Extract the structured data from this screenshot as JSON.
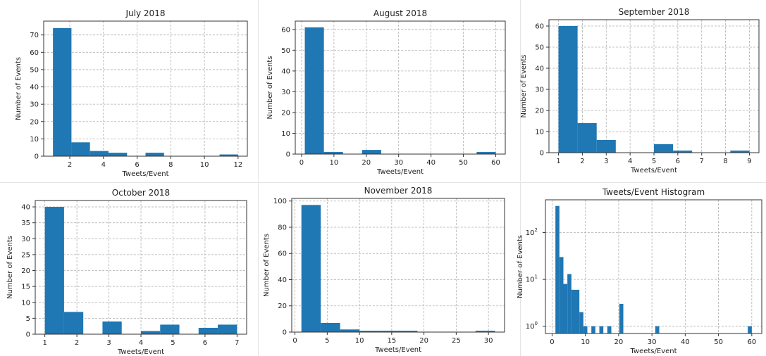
{
  "chart_data": [
    {
      "id": "july",
      "type": "bar",
      "title": "July 2018",
      "xlabel": "Tweets/Event",
      "ylabel": "Number of Events",
      "xlim": [
        0.45,
        12.55
      ],
      "ylim": [
        0,
        78
      ],
      "xticks": [
        2,
        4,
        6,
        8,
        10,
        12
      ],
      "yticks": [
        0,
        10,
        20,
        30,
        40,
        50,
        60,
        70
      ],
      "grid": true,
      "bins": [
        {
          "x0": 1.0,
          "x1": 2.1,
          "count": 74
        },
        {
          "x0": 2.1,
          "x1": 3.2,
          "count": 8
        },
        {
          "x0": 3.2,
          "x1": 4.3,
          "count": 3
        },
        {
          "x0": 4.3,
          "x1": 5.4,
          "count": 2
        },
        {
          "x0": 6.5,
          "x1": 7.6,
          "count": 2
        },
        {
          "x0": 10.9,
          "x1": 12.0,
          "count": 1
        }
      ]
    },
    {
      "id": "august",
      "type": "bar",
      "title": "August 2018",
      "xlabel": "Tweets/Event",
      "ylabel": "Number of Events",
      "xlim": [
        -1.95,
        62.95
      ],
      "ylim": [
        0,
        64
      ],
      "xticks": [
        0,
        10,
        20,
        30,
        40,
        50,
        60
      ],
      "yticks": [
        0,
        10,
        20,
        30,
        40,
        50,
        60
      ],
      "grid": true,
      "bins": [
        {
          "x0": 1.0,
          "x1": 6.9,
          "count": 61
        },
        {
          "x0": 6.9,
          "x1": 12.8,
          "count": 1
        },
        {
          "x0": 18.7,
          "x1": 24.6,
          "count": 2
        },
        {
          "x0": 54.1,
          "x1": 60.0,
          "count": 1
        }
      ]
    },
    {
      "id": "september",
      "type": "bar",
      "title": "September 2018",
      "xlabel": "Tweets/Event",
      "ylabel": "Number of Events",
      "xlim": [
        0.6,
        9.4
      ],
      "ylim": [
        0,
        63
      ],
      "xticks": [
        1,
        2,
        3,
        4,
        5,
        6,
        7,
        8,
        9
      ],
      "yticks": [
        0,
        10,
        20,
        30,
        40,
        50,
        60
      ],
      "grid": true,
      "bins": [
        {
          "x0": 1.0,
          "x1": 1.8,
          "count": 60
        },
        {
          "x0": 1.8,
          "x1": 2.6,
          "count": 14
        },
        {
          "x0": 2.6,
          "x1": 3.4,
          "count": 6
        },
        {
          "x0": 5.0,
          "x1": 5.8,
          "count": 4
        },
        {
          "x0": 5.8,
          "x1": 6.6,
          "count": 1
        },
        {
          "x0": 8.2,
          "x1": 9.0,
          "count": 1
        }
      ]
    },
    {
      "id": "october",
      "type": "bar",
      "title": "October 2018",
      "xlabel": "Tweets/Event",
      "ylabel": "Number of Events",
      "xlim": [
        0.7,
        7.3
      ],
      "ylim": [
        0,
        42
      ],
      "xticks": [
        1,
        2,
        3,
        4,
        5,
        6,
        7
      ],
      "yticks": [
        0,
        5,
        10,
        15,
        20,
        25,
        30,
        35,
        40
      ],
      "grid": true,
      "bins": [
        {
          "x0": 1.0,
          "x1": 1.6,
          "count": 40
        },
        {
          "x0": 1.6,
          "x1": 2.2,
          "count": 7
        },
        {
          "x0": 2.8,
          "x1": 3.4,
          "count": 4
        },
        {
          "x0": 4.0,
          "x1": 4.6,
          "count": 1
        },
        {
          "x0": 4.6,
          "x1": 5.2,
          "count": 3
        },
        {
          "x0": 5.8,
          "x1": 6.4,
          "count": 2
        },
        {
          "x0": 6.4,
          "x1": 7.0,
          "count": 3
        }
      ]
    },
    {
      "id": "november",
      "type": "bar",
      "title": "November 2018",
      "xlabel": "Tweets/Event",
      "ylabel": "Number of Events",
      "xlim": [
        -0.5,
        32.5
      ],
      "ylim": [
        0,
        102
      ],
      "xticks": [
        0,
        5,
        10,
        15,
        20,
        25,
        30
      ],
      "yticks": [
        0,
        20,
        40,
        60,
        80,
        100
      ],
      "grid": true,
      "bins": [
        {
          "x0": 1.0,
          "x1": 4.0,
          "count": 97
        },
        {
          "x0": 4.0,
          "x1": 7.0,
          "count": 7
        },
        {
          "x0": 7.0,
          "x1": 10.0,
          "count": 2
        },
        {
          "x0": 10.0,
          "x1": 13.0,
          "count": 1
        },
        {
          "x0": 13.0,
          "x1": 16.0,
          "count": 1
        },
        {
          "x0": 16.0,
          "x1": 19.0,
          "count": 1
        },
        {
          "x0": 28.0,
          "x1": 31.0,
          "count": 1
        }
      ]
    },
    {
      "id": "overall",
      "type": "bar",
      "title": "Tweets/Event Histogram",
      "xlabel": "Tweets/Event",
      "ylabel": "Number of Events",
      "xscale": "linear",
      "yscale": "log",
      "xlim": [
        -2.0,
        63.0
      ],
      "ylim": [
        0.7,
        500
      ],
      "xticks": [
        0,
        10,
        20,
        30,
        40,
        50,
        60
      ],
      "yticks": [
        {
          "value": 1,
          "base": "10",
          "exp": "0"
        },
        {
          "value": 10,
          "base": "10",
          "exp": "1"
        },
        {
          "value": 100,
          "base": "10",
          "exp": "2"
        }
      ],
      "grid": true,
      "bins": [
        {
          "x0": 1.0,
          "x1": 2.2,
          "count": 370
        },
        {
          "x0": 2.2,
          "x1": 3.4,
          "count": 30
        },
        {
          "x0": 3.4,
          "x1": 4.6,
          "count": 8
        },
        {
          "x0": 4.6,
          "x1": 5.8,
          "count": 13
        },
        {
          "x0": 5.8,
          "x1": 7.0,
          "count": 6
        },
        {
          "x0": 7.0,
          "x1": 8.2,
          "count": 6
        },
        {
          "x0": 8.2,
          "x1": 9.4,
          "count": 2
        },
        {
          "x0": 9.4,
          "x1": 10.6,
          "count": 1
        },
        {
          "x0": 11.8,
          "x1": 13.0,
          "count": 1
        },
        {
          "x0": 14.2,
          "x1": 15.4,
          "count": 1
        },
        {
          "x0": 16.6,
          "x1": 17.8,
          "count": 1
        },
        {
          "x0": 20.2,
          "x1": 21.4,
          "count": 3
        },
        {
          "x0": 31.0,
          "x1": 32.2,
          "count": 1
        },
        {
          "x0": 58.8,
          "x1": 60.0,
          "count": 1
        }
      ]
    }
  ]
}
